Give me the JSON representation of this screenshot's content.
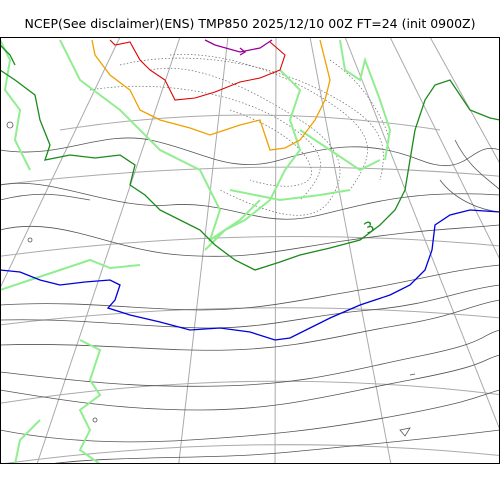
{
  "title": "NCEP(See disclaimer)(ENS) TMP850 2025/12/10 00Z FT=24 (init 0900Z)",
  "colors": {
    "grid": "#aaaaaa",
    "isotherm": "#555555",
    "isotherm_dotted": "#666666",
    "light_green": "#90ee90",
    "green": "#1a8a1a",
    "blue": "#0000dd",
    "orange": "#f0a000",
    "red": "#dd0000",
    "purple": "#990099"
  },
  "contour_labels": [
    {
      "text": "3",
      "color": "green"
    }
  ]
}
